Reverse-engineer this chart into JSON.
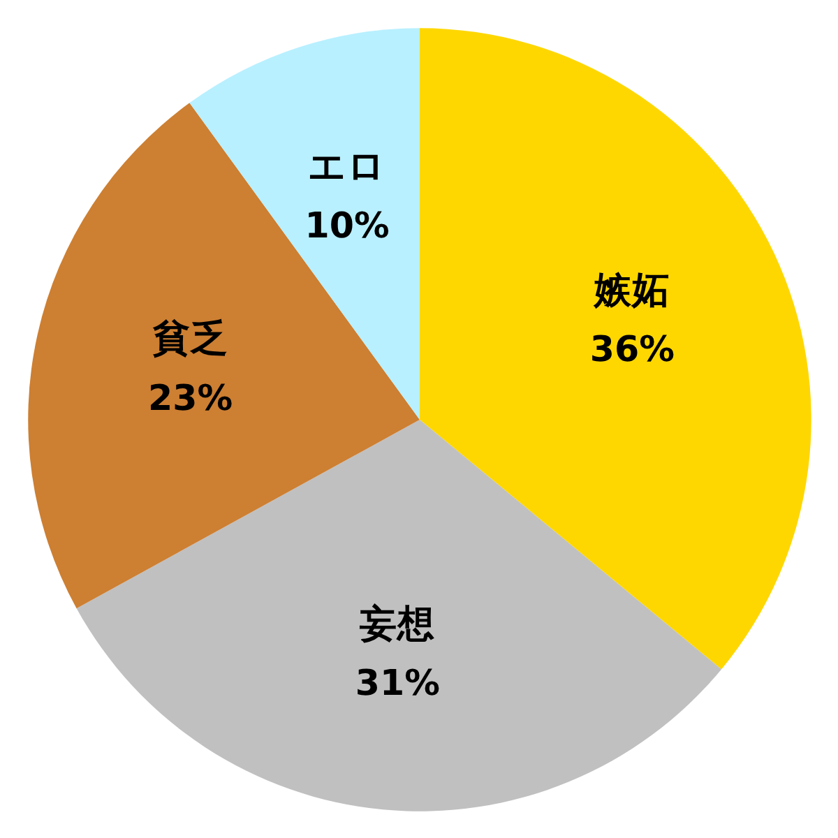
{
  "chart_data": {
    "type": "pie",
    "categories": [
      "嫉妬",
      "妄想",
      "貧乏",
      "エロ"
    ],
    "values": [
      36,
      31,
      23,
      10
    ],
    "colors": [
      "#ffd700",
      "#c0c0c0",
      "#cd7f32",
      "#b8f0ff"
    ],
    "value_labels": [
      "36%",
      "31%",
      "23%",
      "10%"
    ]
  }
}
